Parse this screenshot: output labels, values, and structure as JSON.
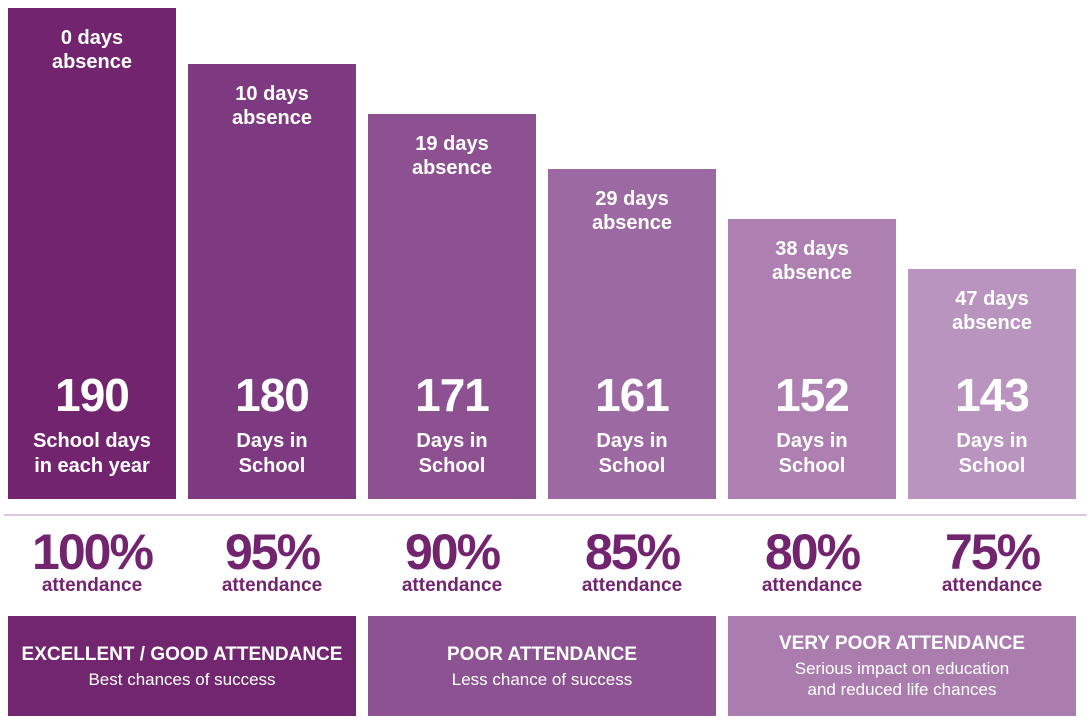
{
  "chart_data": {
    "type": "bar",
    "categories": [
      "100%",
      "95%",
      "90%",
      "85%",
      "80%",
      "75%"
    ],
    "values": [
      190,
      180,
      171,
      161,
      152,
      143
    ],
    "absence_labels": [
      "0 days\nabsence",
      "10 days\nabsence",
      "19 days\nabsence",
      "29 days\nabsence",
      "38 days\nabsence",
      "47 days\nabsence"
    ],
    "value_labels": [
      "School days\nin each year",
      "Days in\nSchool",
      "Days in\nSchool",
      "Days in\nSchool",
      "Days in\nSchool",
      "Days in\nSchool"
    ],
    "attendance_word": "attendance",
    "colors": [
      "#72246f",
      "#7e3a80",
      "#8d5192",
      "#9c69a2",
      "#ad80b1",
      "#b994bf"
    ],
    "legend": "bottom"
  },
  "bands": [
    {
      "title": "EXCELLENT / GOOD ATTENDANCE",
      "subtitle": "Best chances of success",
      "color": "#72266f"
    },
    {
      "title": "POOR ATTENDANCE",
      "subtitle": "Less chance of success",
      "color": "#8d5292"
    },
    {
      "title": "VERY POOR ATTENDANCE",
      "subtitle": "Serious impact on education\nand reduced life chances",
      "color": "#ab7daf"
    }
  ]
}
